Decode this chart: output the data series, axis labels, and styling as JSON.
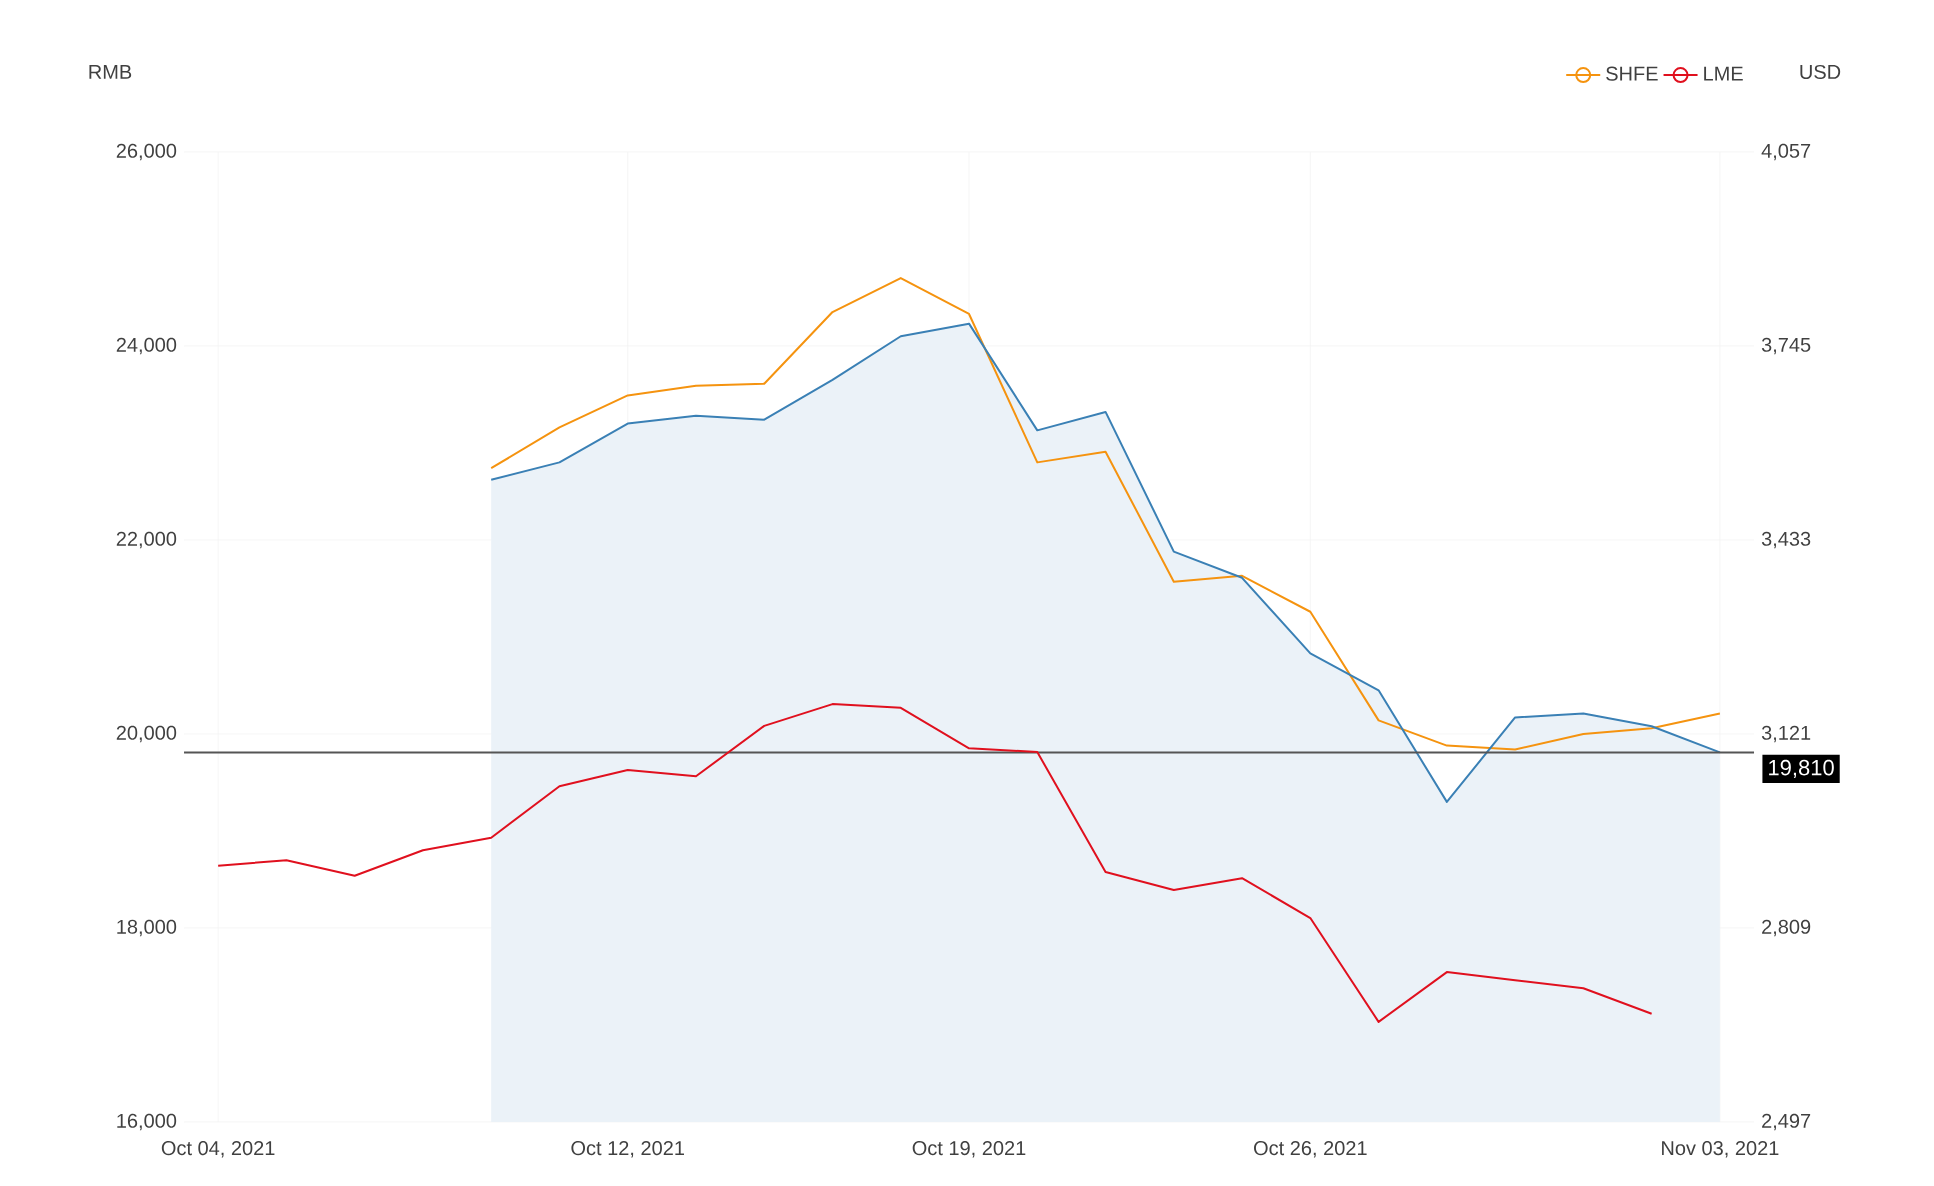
{
  "chart_data": {
    "type": "line",
    "ylabel": "RMB",
    "y2label": "USD",
    "categories": [
      "Oct 04, 2021",
      null,
      null,
      null,
      null,
      null,
      "Oct 12, 2021",
      null,
      null,
      null,
      null,
      "Oct 19, 2021",
      null,
      null,
      null,
      null,
      "Oct 26, 2021",
      null,
      null,
      null,
      null,
      null,
      "Nov 03, 2021"
    ],
    "series": [
      {
        "type": "area",
        "color": "#3a80b5",
        "values": [
          null,
          null,
          null,
          null,
          22620,
          22800,
          23200,
          23280,
          23240,
          23650,
          24100,
          24230,
          23130,
          23320,
          21880,
          21610,
          20830,
          20450,
          19300,
          20170,
          20210,
          20080,
          19810
        ]
      },
      {
        "name": "SHFE",
        "color": "#f5930f",
        "values": [
          null,
          null,
          null,
          null,
          22740,
          23160,
          23490,
          23590,
          23610,
          24350,
          24700,
          24330,
          22800,
          22910,
          21570,
          21630,
          21260,
          20140,
          19880,
          19840,
          20000,
          20060,
          20210
        ]
      },
      {
        "name": "LME",
        "color": "#e0101e",
        "axis": "y2",
        "values": [
          2909,
          2918,
          2893,
          2934,
          2954,
          3037,
          3063,
          3053,
          3134,
          3169,
          3163,
          3098,
          3092,
          2899,
          2870,
          2889,
          2825,
          2658,
          2738,
          2725,
          2712,
          2671,
          null
        ]
      }
    ],
    "ylim": [
      16000,
      26000
    ],
    "yticks": [
      {
        "value": 16000,
        "label": "16,000"
      },
      {
        "value": 18000,
        "label": "18,000"
      },
      {
        "value": 20000,
        "label": "20,000"
      },
      {
        "value": 22000,
        "label": "22,000"
      },
      {
        "value": 24000,
        "label": "24,000"
      },
      {
        "value": 26000,
        "label": "26,000"
      }
    ],
    "y2lim": [
      2497,
      4057
    ],
    "y2ticks": [
      {
        "value": 2497,
        "label": "2,497"
      },
      {
        "value": 2809,
        "label": "2,809"
      },
      {
        "value": 3121,
        "label": "3,121"
      },
      {
        "value": 3433,
        "label": "3,433"
      },
      {
        "value": 3745,
        "label": "3,745"
      },
      {
        "value": 4057,
        "label": "4,057"
      }
    ],
    "ref_lines": [
      {
        "axis": "y",
        "value": 19810,
        "label": "19,810",
        "color": "#555555"
      }
    ],
    "grid": true,
    "legend": "top right",
    "marker": "none",
    "line_style": "solid"
  }
}
